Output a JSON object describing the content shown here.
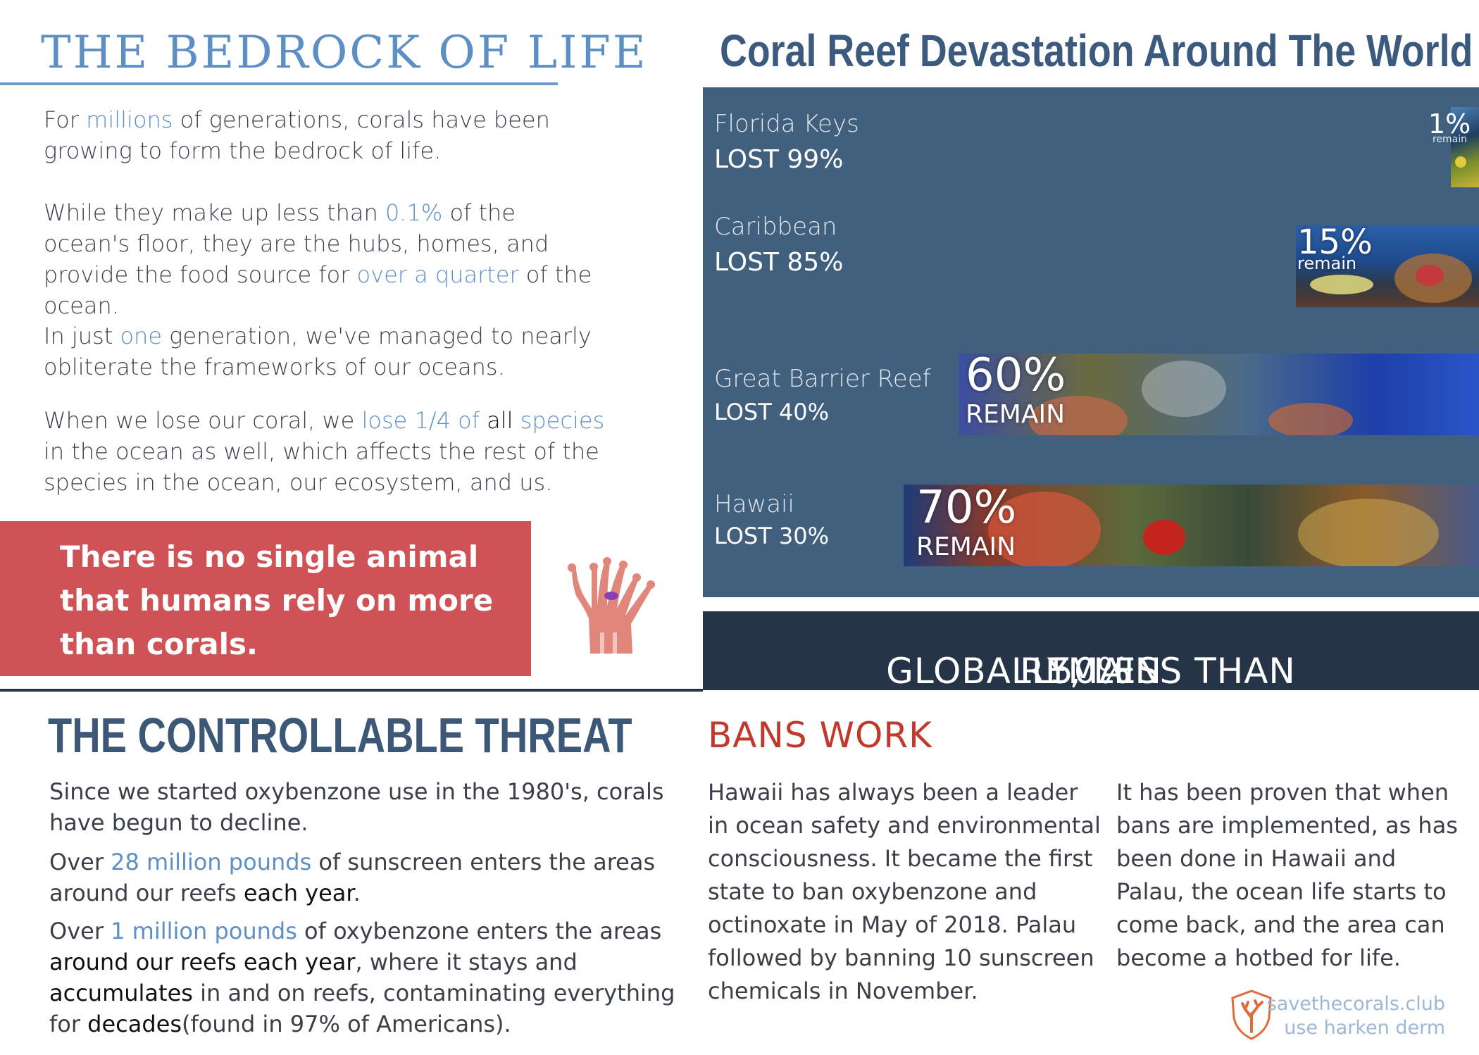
{
  "left": {
    "title": "THE BEDROCK OF LIFE",
    "p1": {
      "a": "For ",
      "hl1": "millions",
      "b": " of generations, corals have been growing to form the bedrock of life."
    },
    "p2": {
      "a": "While they make up less than ",
      "hl1": "0.1%",
      "b": " of the ocean's floor, they are the hubs, homes, and provide the food source for ",
      "hl2": "over a quarter",
      "c": " of the ocean."
    },
    "p3": {
      "a": "In just ",
      "hl1": "one",
      "b": " generation, we've managed to nearly obliterate the frameworks of our oceans."
    },
    "p4": {
      "a": "When we lose our coral, we ",
      "hl1": "lose 1/4 of",
      "dk1": " all ",
      "hl2": "species",
      "b": " in the ocean as well, which affects the rest of the species in the ocean, our ecosystem, and us."
    },
    "callout": "There is no single animal that humans rely on more than corals."
  },
  "devastation": {
    "title": "Coral Reef Devastation Around The World",
    "regions": [
      {
        "name": "Florida Keys",
        "lost_label": "LOST 99%",
        "remain_pct": "1%",
        "remain_label": "remain",
        "remain_fraction": 0.01
      },
      {
        "name": "Caribbean",
        "lost_label": "LOST 85%",
        "remain_pct": "15%",
        "remain_label": "remain",
        "remain_fraction": 0.15
      },
      {
        "name": "Great Barrier Reef",
        "lost_label": "LOST 40%",
        "remain_pct": "60%",
        "remain_label": "REMAIN",
        "remain_fraction": 0.6
      },
      {
        "name": "Hawaii",
        "lost_label": "LOST 30%",
        "remain_pct": "70%",
        "remain_label": "REMAIN",
        "remain_fraction": 0.7
      }
    ],
    "global": {
      "a": "GLOBALLY, LESS THAN ",
      "pct": "50%",
      "b": " REMAIN"
    },
    "colors": {
      "panel": "#41607d",
      "global_bar": "#253447",
      "accent_red": "#d9505a"
    }
  },
  "threat": {
    "title": "THE CONTROLLABLE THREAT",
    "p1": "Since we started oxybenzone use in the 1980's, corals have begun to decline.",
    "p2": {
      "a": "Over ",
      "hl1": "28 million pounds",
      "b": " of sunscreen enters the areas around our reefs ",
      "dk1": "each year",
      "c": "."
    },
    "p3": {
      "a": "Over ",
      "hl1": "1 million pounds",
      "b": " of oxybenzone enters the areas ",
      "dk1": "around our reefs each year",
      "c": ", where it stays and ",
      "dk2": "accumulates",
      "d": " in and on reefs, contaminating everything for ",
      "dk3": "decades",
      "e": "(found in 97% of Americans)."
    }
  },
  "bans": {
    "title": "BANS WORK",
    "col1": "Hawaii has always been a leader in ocean safety and environmental consciousness. It became the first state to ban oxybenzone and octinoxate in May of 2018. Palau followed by banning 10 sunscreen chemicals in November.",
    "col2": "It has been proven that when bans are implemented, as has been done in Hawaii and Palau, the ocean life starts to come back, and the area can become a hotbed for life.",
    "footer": {
      "site": "savethecorals.club",
      "credit": "use harken derm",
      "logo_icon": "coral-shield-icon"
    }
  }
}
